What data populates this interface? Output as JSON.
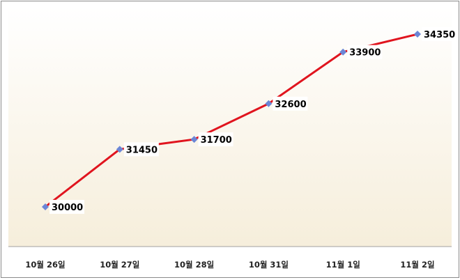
{
  "chart_data": {
    "type": "line",
    "categories": [
      "10월 26일",
      "10월 27일",
      "10월 28일",
      "10월 31일",
      "11월 1일",
      "11월 2일"
    ],
    "values": [
      30000,
      31450,
      31700,
      32600,
      33900,
      34350
    ],
    "title": "",
    "xlabel": "",
    "ylabel": "",
    "ylim": [
      29000,
      35000
    ],
    "y_axis_visible": false,
    "grid": false,
    "data_labels": true,
    "line_color": "#e0141e",
    "marker_color": "#6b86d6",
    "marker": "diamond",
    "plot_background": [
      "#ffffff",
      "#f6eedb"
    ]
  }
}
